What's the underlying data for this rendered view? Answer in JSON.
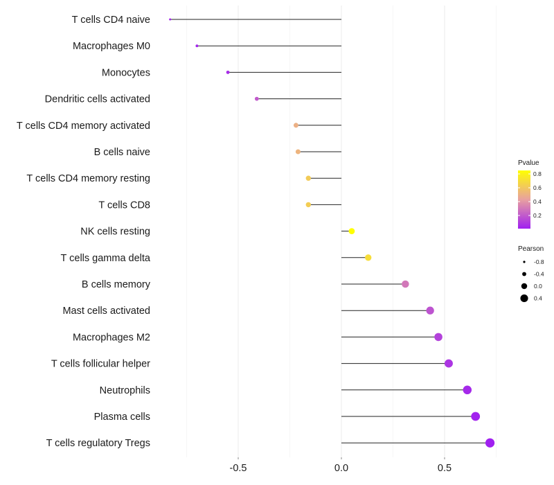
{
  "chart_data": {
    "type": "lollipop",
    "title": "",
    "xlabel": "",
    "ylabel": "",
    "xlim": [
      -0.83,
      0.76
    ],
    "xticks": [
      -0.5,
      0.0,
      0.5
    ],
    "xtick_labels": [
      "-0.5",
      "0.0",
      "0.5"
    ],
    "grid": true,
    "categories": [
      "T cells CD4 naive",
      "Macrophages M0",
      "Monocytes",
      "Dendritic cells activated",
      "T cells CD4 memory activated",
      "B cells naive",
      "T cells CD4 memory resting",
      "T cells CD8",
      "NK cells resting",
      "T cells gamma delta",
      "B cells memory",
      "Mast cells activated",
      "Macrophages M2",
      "T cells follicular helper",
      "Neutrophils",
      "Plasma cells",
      "T cells regulatory  Tregs"
    ],
    "pearson": [
      -0.83,
      -0.7,
      -0.55,
      -0.41,
      -0.22,
      -0.21,
      -0.16,
      -0.16,
      0.05,
      0.13,
      0.31,
      0.43,
      0.47,
      0.52,
      0.61,
      0.65,
      0.72
    ],
    "pvalue": [
      0.02,
      0.03,
      0.05,
      0.2,
      0.5,
      0.52,
      0.62,
      0.63,
      0.85,
      0.7,
      0.3,
      0.18,
      0.12,
      0.08,
      0.04,
      0.02,
      0.01
    ],
    "legend": {
      "color": {
        "title": "Pvalue",
        "ticks": [
          "0.8",
          "0.6",
          "0.4",
          "0.2"
        ],
        "tick_values": [
          0.8,
          0.6,
          0.4,
          0.2
        ],
        "range": [
          0.01,
          0.85
        ],
        "low_color": "#a020f0",
        "mid_color": "#e8a0a0",
        "high_color": "#ffff00"
      },
      "size": {
        "title": "Pearson",
        "ticks": [
          "-0.8",
          "-0.4",
          "0.0",
          "0.4"
        ],
        "tick_values": [
          -0.8,
          -0.4,
          0.0,
          0.4
        ]
      },
      "placement": "right"
    }
  }
}
